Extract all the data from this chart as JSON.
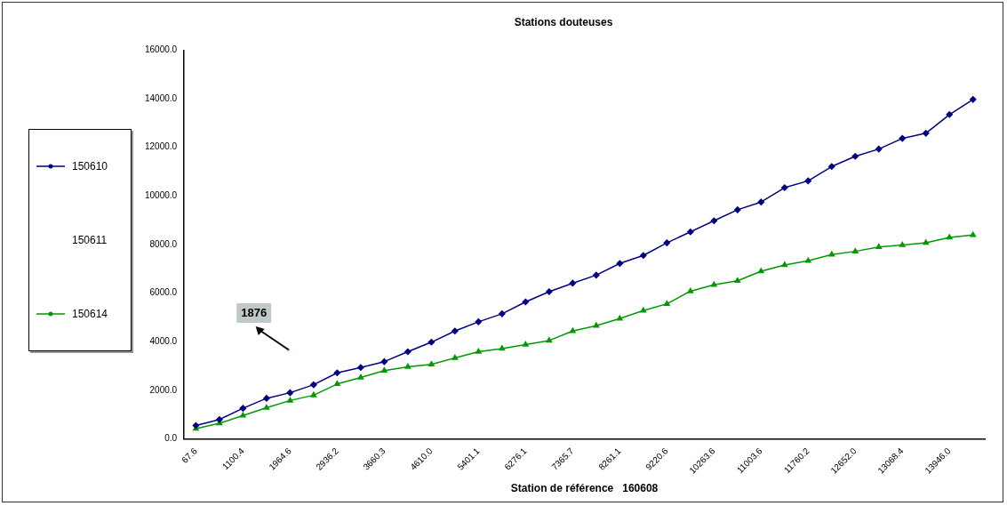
{
  "chart_data": {
    "type": "line",
    "title": "Stations douteuses",
    "xlabel": "Station de référence   160608",
    "categories": [
      "67.6",
      null,
      "1100.4",
      null,
      "1964.6",
      null,
      "2936.2",
      null,
      "3660.3",
      null,
      "4610.0",
      null,
      "5401.1",
      null,
      "6276.1",
      null,
      "7365.7",
      null,
      "8261.1",
      null,
      "9220.6",
      null,
      "10263.6",
      null,
      "11003.6",
      null,
      "11760.2",
      null,
      "12652.0",
      null,
      "13068.4",
      null,
      "13946.0",
      null
    ],
    "series": [
      {
        "name": "150610",
        "color": "#000080",
        "marker": "diamond",
        "values": [
          550,
          800,
          1260,
          1670,
          1900,
          2230,
          2720,
          2940,
          3180,
          3590,
          3980,
          4440,
          4820,
          5150,
          5640,
          6060,
          6410,
          6740,
          7220,
          7550,
          8070,
          8520,
          8980,
          9430,
          9750,
          10340,
          10620,
          11210,
          11630,
          11930,
          12370,
          12580,
          13350,
          13970
        ]
      },
      {
        "name": "150611",
        "values": [
          null,
          null,
          null,
          null,
          null,
          null,
          null,
          null,
          null,
          null,
          null,
          null,
          null,
          null,
          null,
          null,
          null,
          null,
          null,
          null,
          null,
          null,
          null,
          null,
          null,
          null,
          null,
          null,
          null,
          null,
          null,
          null,
          null,
          null
        ]
      },
      {
        "name": "150614",
        "color": "#009900",
        "marker": "triangle",
        "values": [
          420,
          640,
          960,
          1280,
          1580,
          1800,
          2260,
          2530,
          2810,
          2970,
          3070,
          3330,
          3590,
          3720,
          3880,
          4050,
          4440,
          4660,
          4950,
          5280,
          5560,
          6080,
          6340,
          6510,
          6900,
          7160,
          7330,
          7590,
          7720,
          7900,
          7980,
          8070,
          8290,
          8390
        ]
      }
    ],
    "ylim": [
      0,
      16000
    ],
    "yticks": [
      {
        "value": 0,
        "label": "0.0"
      },
      {
        "value": 2000,
        "label": "2000.0"
      },
      {
        "value": 4000,
        "label": "4000.0"
      },
      {
        "value": 6000,
        "label": "6000.0"
      },
      {
        "value": 8000,
        "label": "8000.0"
      },
      {
        "value": 10000,
        "label": "10000.0"
      },
      {
        "value": 12000,
        "label": "12000.0"
      },
      {
        "value": 14000,
        "label": "14000.0"
      },
      {
        "value": 16000,
        "label": "16000.0"
      }
    ],
    "annotations": [
      "1876"
    ],
    "grid": false,
    "legend": "left"
  }
}
